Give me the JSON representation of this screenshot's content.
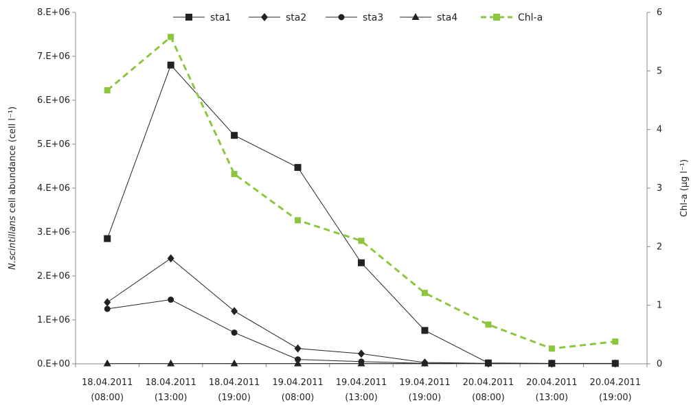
{
  "chart_data": {
    "type": "line",
    "categories": [
      [
        "18.04.2011",
        "(08:00)"
      ],
      [
        "18.04.2011",
        "(13:00)"
      ],
      [
        "18.04.2011",
        "(19:00)"
      ],
      [
        "19.04.2011",
        "(08:00)"
      ],
      [
        "19.04.2011",
        "(13:00)"
      ],
      [
        "19.04.2011",
        "(19:00)"
      ],
      [
        "20.04.2011",
        "(08:00)"
      ],
      [
        "20.04.2011",
        "(13:00)"
      ],
      [
        "20.04.2011",
        "(19:00)"
      ]
    ],
    "y_left": {
      "label_italic": "N.scintillans",
      "label_rest": " cell abundance (cell l⁻¹)",
      "ylim": [
        0,
        8000000
      ],
      "tick_values": [
        0,
        1000000,
        2000000,
        3000000,
        4000000,
        5000000,
        6000000,
        7000000,
        8000000
      ],
      "tick_labels": [
        "0.E+00",
        "1.E+06",
        "2.E+06",
        "3.E+06",
        "4.E+06",
        "5.E+06",
        "6.E+06",
        "7.E+06",
        "8.E+06"
      ]
    },
    "y_right": {
      "label": "Chl-a (µg l⁻¹)",
      "ylim": [
        0,
        6
      ],
      "tick_values": [
        0,
        1,
        2,
        3,
        4,
        5,
        6
      ],
      "tick_labels": [
        "0",
        "1",
        "2",
        "3",
        "4",
        "5",
        "6"
      ]
    },
    "grid": false,
    "legend_position": "top",
    "series": [
      {
        "name": "sta1",
        "axis": "left",
        "marker": "square",
        "color": "#222222",
        "dashed": false,
        "values": [
          2850000,
          6800000,
          5200000,
          4470000,
          2300000,
          760000,
          20000,
          10000,
          10000
        ]
      },
      {
        "name": "sta2",
        "axis": "left",
        "marker": "diamond",
        "color": "#222222",
        "dashed": false,
        "values": [
          1400000,
          2400000,
          1200000,
          350000,
          230000,
          30000,
          10000,
          5000,
          5000
        ]
      },
      {
        "name": "sta3",
        "axis": "left",
        "marker": "circle",
        "color": "#222222",
        "dashed": false,
        "values": [
          1250000,
          1460000,
          710000,
          100000,
          50000,
          10000,
          5000,
          5000,
          5000
        ]
      },
      {
        "name": "sta4",
        "axis": "left",
        "marker": "triangle",
        "color": "#222222",
        "dashed": false,
        "values": [
          5000,
          5000,
          5000,
          5000,
          5000,
          5000,
          5000,
          5000,
          5000
        ]
      },
      {
        "name": "Chl-a",
        "axis": "right",
        "marker": "square",
        "color": "#8cc63f",
        "dashed": true,
        "values": [
          4.67,
          5.58,
          3.24,
          2.45,
          2.1,
          1.21,
          0.67,
          0.26,
          0.38
        ]
      }
    ]
  }
}
